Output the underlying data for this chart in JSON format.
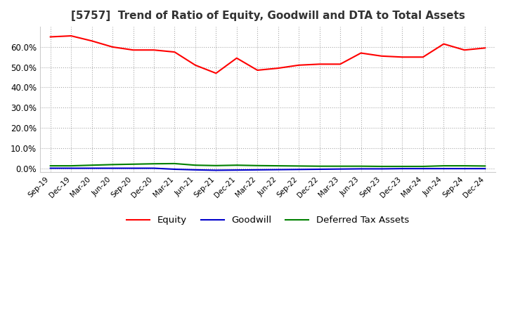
{
  "title": "[5757]  Trend of Ratio of Equity, Goodwill and DTA to Total Assets",
  "title_fontsize": 11,
  "x_labels": [
    "Sep-19",
    "Dec-19",
    "Mar-20",
    "Jun-20",
    "Sep-20",
    "Dec-20",
    "Mar-21",
    "Jun-21",
    "Sep-21",
    "Dec-21",
    "Mar-22",
    "Jun-22",
    "Sep-22",
    "Dec-22",
    "Mar-23",
    "Jun-23",
    "Sep-23",
    "Dec-23",
    "Mar-24",
    "Jun-24",
    "Sep-24",
    "Dec-24"
  ],
  "equity": [
    65.0,
    65.5,
    63.0,
    60.0,
    58.5,
    58.5,
    57.5,
    51.0,
    47.0,
    54.5,
    48.5,
    49.5,
    51.0,
    51.5,
    51.5,
    57.0,
    55.5,
    55.0,
    55.0,
    61.5,
    58.5,
    59.5
  ],
  "goodwill": [
    0.0,
    0.0,
    0.0,
    0.0,
    0.0,
    0.0,
    -0.5,
    -0.8,
    -1.0,
    -0.9,
    -0.8,
    -0.7,
    -0.6,
    -0.5,
    -0.4,
    -0.3,
    -0.3,
    -0.2,
    -0.2,
    -0.2,
    -0.2,
    -0.2
  ],
  "dta": [
    1.2,
    1.2,
    1.5,
    1.8,
    2.0,
    2.2,
    2.3,
    1.5,
    1.3,
    1.5,
    1.3,
    1.2,
    1.1,
    1.0,
    1.0,
    1.0,
    0.9,
    0.9,
    0.9,
    1.2,
    1.2,
    1.1
  ],
  "equity_color": "#ff0000",
  "goodwill_color": "#0000cc",
  "dta_color": "#008000",
  "ylim": [
    -2,
    70
  ],
  "yticks": [
    0,
    10,
    20,
    30,
    40,
    50,
    60
  ],
  "background_color": "#ffffff",
  "grid_color": "#aaaaaa",
  "legend_labels": [
    "Equity",
    "Goodwill",
    "Deferred Tax Assets"
  ]
}
